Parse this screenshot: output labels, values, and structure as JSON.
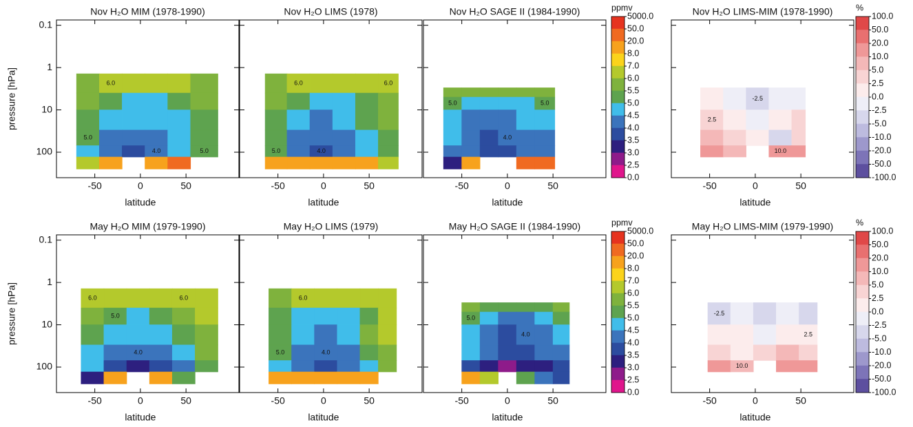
{
  "chart_data": [
    {
      "type": "contour",
      "title": "Nov H₂O MIM (1978-1990)",
      "x_label": "latitude",
      "y_label": "pressure [hPa]",
      "ytick_labels": true,
      "xlim": [
        -92,
        108
      ],
      "xticks": [
        -50,
        0,
        50
      ],
      "ylim": [
        400,
        0.075
      ],
      "yticks": [
        0.1,
        1,
        10,
        100
      ],
      "log_y": true,
      "x_edges": [
        -70,
        -45,
        -20,
        5,
        30,
        55,
        85
      ],
      "y_edges": [
        1.4,
        4,
        10,
        30,
        70,
        130,
        250
      ],
      "z": [
        [
          5.8,
          6.0,
          6.3,
          6.5,
          6.2,
          5.8
        ],
        [
          5.6,
          5.2,
          4.8,
          4.8,
          5.2,
          5.6
        ],
        [
          5.2,
          4.6,
          4.6,
          4.6,
          4.7,
          5.2
        ],
        [
          5.1,
          4.3,
          4.2,
          4.3,
          4.6,
          5.1
        ],
        [
          4.8,
          4.2,
          3.8,
          4.1,
          4.6,
          5.0
        ],
        [
          6.5,
          9,
          null,
          15,
          30,
          null
        ]
      ],
      "contour_labels": [
        "6.0",
        "5.0",
        "4.0",
        "5.0"
      ]
    },
    {
      "type": "contour",
      "title": "Nov H₂O LIMS (1978)",
      "x_label": "latitude",
      "ytick_labels": false,
      "xlim": [
        -92,
        108
      ],
      "xticks": [
        -50,
        0,
        50
      ],
      "ylim": [
        400,
        0.075
      ],
      "yticks": [
        0.1,
        1,
        10,
        100
      ],
      "log_y": true,
      "x_edges": [
        -64,
        -40,
        -15,
        10,
        35,
        60,
        82
      ],
      "y_edges": [
        1.4,
        4,
        10,
        30,
        70,
        130,
        250
      ],
      "z": [
        [
          5.8,
          6.1,
          6.4,
          6.8,
          6.3,
          6.0
        ],
        [
          5.6,
          5.2,
          4.8,
          4.8,
          5.3,
          5.6
        ],
        [
          5.3,
          4.7,
          4.3,
          4.7,
          5.2,
          5.5
        ],
        [
          5.1,
          4.4,
          4.2,
          4.3,
          4.8,
          5.3
        ],
        [
          5.0,
          4.3,
          3.9,
          4.2,
          4.7,
          5.2
        ],
        [
          8,
          10,
          9,
          9,
          8,
          6.2
        ]
      ],
      "contour_labels": [
        "6.0",
        "5.0",
        "4.0",
        "6.0"
      ]
    },
    {
      "type": "contour",
      "title": "Nov H₂O SAGE II (1984-1990)",
      "x_label": "latitude",
      "ytick_labels": false,
      "xlim": [
        -92,
        108
      ],
      "xticks": [
        -50,
        0,
        50
      ],
      "ylim": [
        400,
        0.075
      ],
      "yticks": [
        0.1,
        1,
        10,
        100
      ],
      "log_y": true,
      "x_edges": [
        -70,
        -50,
        -30,
        -10,
        10,
        30,
        52
      ],
      "y_edges": [
        3,
        5,
        10,
        30,
        70,
        130,
        250
      ],
      "z": [
        [
          5.5,
          5.6,
          5.6,
          5.7,
          5.8,
          5.9
        ],
        [
          5.2,
          4.8,
          4.6,
          4.6,
          4.8,
          5.1
        ],
        [
          4.8,
          4.4,
          4.2,
          4.3,
          4.5,
          4.8
        ],
        [
          4.5,
          4.2,
          3.9,
          4.0,
          4.2,
          4.4
        ],
        [
          4.2,
          4.0,
          3.7,
          3.9,
          4.1,
          4.3
        ],
        [
          3.0,
          8,
          null,
          null,
          20,
          30
        ]
      ],
      "contour_labels": [
        "5.0",
        "4.0",
        "5.0"
      ]
    },
    {
      "type": "colorbar",
      "label": "ppmv",
      "ticks": [
        {
          "value": 5000,
          "label": "5000.0"
        },
        {
          "value": 50,
          "label": "50.0"
        },
        {
          "value": 20,
          "label": "20.0"
        },
        {
          "value": 8,
          "label": "8.0"
        },
        {
          "value": 7,
          "label": "7.0"
        },
        {
          "value": 6,
          "label": "6.0"
        },
        5.5,
        {
          "value": 5,
          "label": "5.0"
        },
        4.5,
        {
          "value": 4,
          "label": "4.0"
        },
        3.5,
        {
          "value": 3,
          "label": "3.0"
        },
        2.5,
        {
          "value": 0,
          "label": "0.0"
        }
      ],
      "colors": [
        "#e6331f",
        "#f06a21",
        "#f7a21d",
        "#fbd31b",
        "#b4c92c",
        "#7fb23d",
        "#5ea34f",
        "#40bdea",
        "#3b74bc",
        "#2c4c9f",
        "#2d1f7f",
        "#8e1b8a",
        "#e0168c"
      ]
    },
    {
      "type": "contour",
      "title": "Nov H₂O LIMS-MIM (1978-1990)",
      "x_label": "latitude",
      "ytick_labels": false,
      "xlim": [
        -92,
        108
      ],
      "xticks": [
        -50,
        0,
        50
      ],
      "ylim": [
        400,
        0.075
      ],
      "yticks": [
        0.1,
        1,
        10,
        100
      ],
      "log_y": true,
      "x_edges": [
        -60,
        -35,
        -10,
        15,
        40,
        55
      ],
      "y_edges": [
        3,
        10,
        30,
        70,
        130
      ],
      "z": [
        [
          0.5,
          -1,
          -3,
          -2,
          -1
        ],
        [
          3,
          1,
          -1,
          1,
          3
        ],
        [
          6,
          4,
          0,
          -3,
          4
        ],
        [
          12,
          8,
          null,
          10,
          12
        ]
      ],
      "contour_labels": [
        "-2.5",
        "2.5",
        "10.0"
      ]
    },
    {
      "type": "colorbar",
      "label": "%",
      "ticks": [
        {
          "value": 100,
          "label": "100.0"
        },
        {
          "value": 50,
          "label": "50.0"
        },
        {
          "value": 20,
          "label": "20.0"
        },
        {
          "value": 10,
          "label": "10.0"
        },
        {
          "value": 5,
          "label": "5.0"
        },
        2.5,
        {
          "value": 0,
          "label": "0.0"
        },
        -2.5,
        {
          "value": -5,
          "label": "-5.0"
        },
        {
          "value": -10,
          "label": "-10.0"
        },
        {
          "value": -20,
          "label": "-20.0"
        },
        {
          "value": -50,
          "label": "-50.0"
        },
        {
          "value": -100,
          "label": "-100.0"
        }
      ],
      "colors": [
        "#e04848",
        "#e87070",
        "#ef9898",
        "#f4b8b8",
        "#f8d4d4",
        "#fcecec",
        "#eeeef7",
        "#d7d7ec",
        "#bdbbdf",
        "#9d98cc",
        "#7d74b8",
        "#5d4f9f"
      ]
    },
    {
      "type": "contour",
      "title": "May H₂O MIM (1979-1990)",
      "x_label": "latitude",
      "y_label": "pressure [hPa]",
      "ytick_labels": true,
      "xlim": [
        -92,
        108
      ],
      "xticks": [
        -50,
        0,
        50
      ],
      "ylim": [
        400,
        0.075
      ],
      "yticks": [
        0.1,
        1,
        10,
        100
      ],
      "log_y": true,
      "x_edges": [
        -65,
        -40,
        -15,
        10,
        35,
        60,
        85
      ],
      "y_edges": [
        1.4,
        4,
        10,
        30,
        70,
        130,
        250
      ],
      "z": [
        [
          6.0,
          6.2,
          6.5,
          6.3,
          6.0,
          6.2
        ],
        [
          5.5,
          5.0,
          4.8,
          5.0,
          5.6,
          6.0
        ],
        [
          5.0,
          4.6,
          4.5,
          4.6,
          5.0,
          5.8
        ],
        [
          4.7,
          4.3,
          4.2,
          4.4,
          4.7,
          5.5
        ],
        [
          4.5,
          3.8,
          3.4,
          3.8,
          4.4,
          5.2
        ],
        [
          3.0,
          8.0,
          null,
          10,
          5.2,
          null
        ]
      ],
      "contour_labels": [
        "6.0",
        "5.0",
        "4.0",
        "6.0"
      ]
    },
    {
      "type": "contour",
      "title": "May H₂O LIMS (1979)",
      "x_label": "latitude",
      "ytick_labels": false,
      "xlim": [
        -92,
        108
      ],
      "xticks": [
        -50,
        0,
        50
      ],
      "ylim": [
        400,
        0.075
      ],
      "yticks": [
        0.1,
        1,
        10,
        100
      ],
      "log_y": true,
      "x_edges": [
        -60,
        -35,
        -10,
        15,
        40,
        60,
        80
      ],
      "y_edges": [
        1.4,
        4,
        10,
        30,
        70,
        130,
        250
      ],
      "z": [
        [
          5.8,
          6.0,
          6.2,
          6.2,
          6.2,
          6.5
        ],
        [
          5.4,
          4.8,
          4.7,
          4.8,
          5.4,
          6.0
        ],
        [
          5.2,
          4.6,
          4.3,
          4.6,
          5.5,
          6.0
        ],
        [
          5.0,
          4.3,
          4.2,
          4.4,
          5.3,
          5.7
        ],
        [
          4.8,
          4.2,
          3.8,
          4.2,
          4.8,
          5.6
        ],
        [
          9,
          12,
          12,
          10,
          8,
          null
        ]
      ],
      "contour_labels": [
        "5.0",
        "4.0",
        "6.0"
      ]
    },
    {
      "type": "contour",
      "title": "May H₂O SAGE II (1984-1990)",
      "x_label": "latitude",
      "ytick_labels": false,
      "xlim": [
        -92,
        108
      ],
      "xticks": [
        -50,
        0,
        50
      ],
      "ylim": [
        400,
        0.075
      ],
      "yticks": [
        0.1,
        1,
        10,
        100
      ],
      "log_y": true,
      "x_edges": [
        -50,
        -30,
        -10,
        10,
        30,
        50,
        68
      ],
      "y_edges": [
        3,
        5,
        10,
        30,
        70,
        130,
        250
      ],
      "z": [
        [
          5.5,
          5.4,
          5.3,
          5.3,
          5.4,
          5.5
        ],
        [
          5.0,
          4.5,
          4.3,
          4.3,
          4.6,
          5.0
        ],
        [
          4.7,
          4.2,
          3.9,
          4.0,
          4.3,
          4.6
        ],
        [
          4.5,
          4.0,
          3.7,
          3.9,
          4.2,
          4.4
        ],
        [
          3.8,
          3.2,
          2.8,
          3.0,
          3.4,
          3.8
        ],
        [
          8,
          6,
          null,
          5,
          4,
          3.5
        ]
      ],
      "contour_labels": [
        "5.0",
        "4.0"
      ]
    },
    {
      "type": "colorbar",
      "label": "ppmv",
      "ticks": [
        {
          "value": 5000,
          "label": "5000.0"
        },
        {
          "value": 50,
          "label": "50.0"
        },
        {
          "value": 20,
          "label": "20.0"
        },
        {
          "value": 8,
          "label": "8.0"
        },
        {
          "value": 7,
          "label": "7.0"
        },
        {
          "value": 6,
          "label": "6.0"
        },
        5.5,
        {
          "value": 5,
          "label": "5.0"
        },
        4.5,
        {
          "value": 4,
          "label": "4.0"
        },
        3.5,
        {
          "value": 3,
          "label": "3.0"
        },
        2.5,
        {
          "value": 0,
          "label": "0.0"
        }
      ],
      "colors": [
        "#e6331f",
        "#f06a21",
        "#f7a21d",
        "#fbd31b",
        "#b4c92c",
        "#7fb23d",
        "#5ea34f",
        "#40bdea",
        "#3b74bc",
        "#2c4c9f",
        "#2d1f7f",
        "#8e1b8a",
        "#e0168c"
      ]
    },
    {
      "type": "contour",
      "title": "May H₂O LIMS-MIM (1979-1990)",
      "x_label": "latitude",
      "ytick_labels": false,
      "xlim": [
        -92,
        108
      ],
      "xticks": [
        -50,
        0,
        50
      ],
      "ylim": [
        400,
        0.075
      ],
      "yticks": [
        0.1,
        1,
        10,
        100
      ],
      "log_y": true,
      "x_edges": [
        -52,
        -27,
        -2,
        23,
        48,
        68
      ],
      "y_edges": [
        3,
        10,
        30,
        70,
        130
      ],
      "z": [
        [
          -3,
          -2,
          -4,
          -1,
          -3
        ],
        [
          0,
          1,
          -1,
          0,
          2
        ],
        [
          3,
          2,
          3,
          5,
          4
        ],
        [
          12,
          9,
          null,
          12,
          12
        ]
      ],
      "contour_labels": [
        "-2.5",
        "2.5",
        "10.0"
      ]
    },
    {
      "type": "colorbar",
      "label": "%",
      "ticks": [
        {
          "value": 100,
          "label": "100.0"
        },
        {
          "value": 50,
          "label": "50.0"
        },
        {
          "value": 20,
          "label": "20.0"
        },
        {
          "value": 10,
          "label": "10.0"
        },
        {
          "value": 5,
          "label": "5.0"
        },
        2.5,
        {
          "value": 0,
          "label": "0.0"
        },
        -2.5,
        {
          "value": -5,
          "label": "-5.0"
        },
        {
          "value": -10,
          "label": "-10.0"
        },
        {
          "value": -20,
          "label": "-20.0"
        },
        {
          "value": -50,
          "label": "-50.0"
        },
        {
          "value": -100,
          "label": "-100.0"
        }
      ],
      "colors": [
        "#e04848",
        "#e87070",
        "#ef9898",
        "#f4b8b8",
        "#f8d4d4",
        "#fcecec",
        "#eeeef7",
        "#d7d7ec",
        "#bdbbdf",
        "#9d98cc",
        "#7d74b8",
        "#5d4f9f"
      ]
    }
  ]
}
